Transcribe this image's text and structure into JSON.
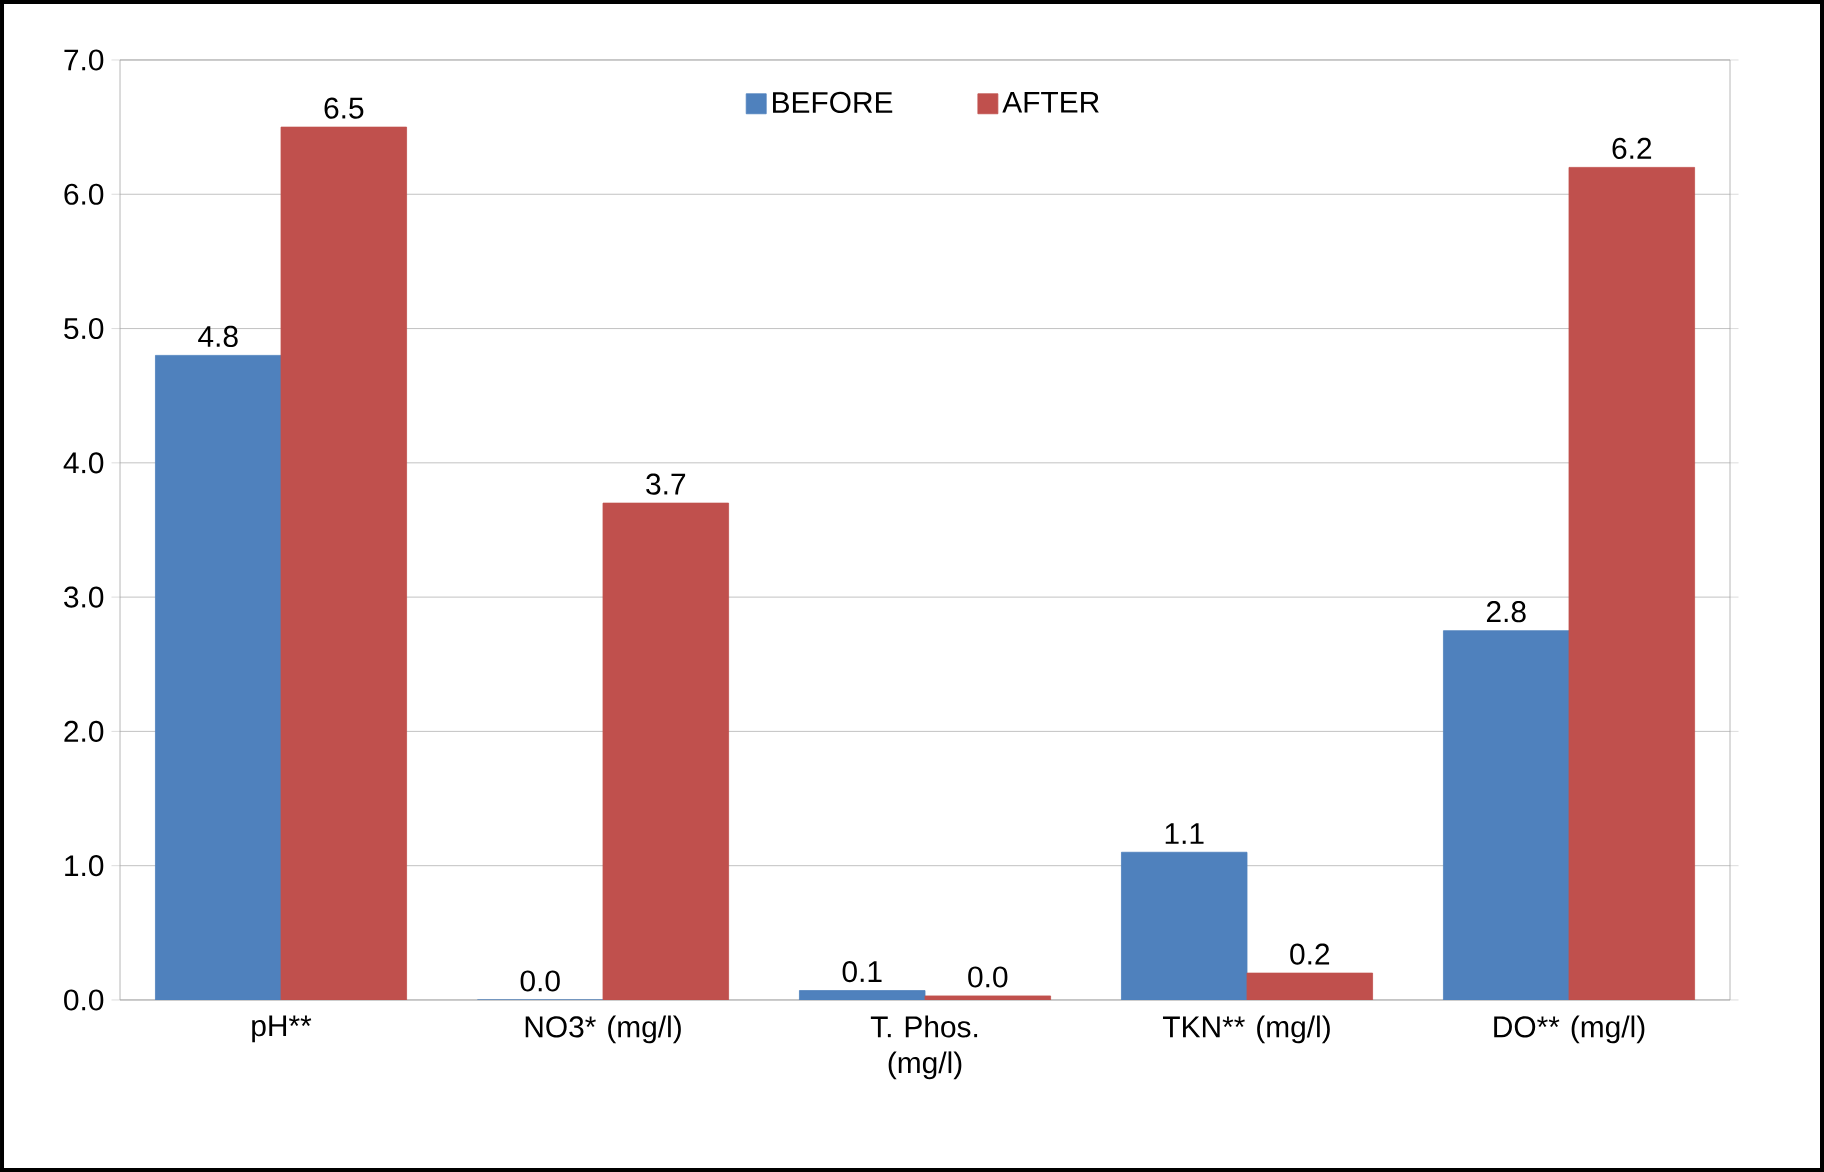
{
  "chart_data": {
    "type": "bar",
    "categories": [
      "pH**",
      "NO3* (mg/l)",
      "T. Phos. (mg/l)",
      "TKN** (mg/l)",
      "DO** (mg/l)"
    ],
    "series": [
      {
        "name": "BEFORE",
        "color": "#4f81bd",
        "values": [
          4.8,
          0.0,
          0.07,
          1.1,
          2.75
        ],
        "value_labels": [
          "4.8",
          "0.0",
          "0.1",
          "1.1",
          "2.8"
        ]
      },
      {
        "name": "AFTER",
        "color": "#c0504d",
        "values": [
          6.5,
          3.7,
          0.03,
          0.2,
          6.2
        ],
        "value_labels": [
          "6.5",
          "3.7",
          "0.0",
          "0.2",
          "6.2"
        ]
      }
    ],
    "ylim": [
      0,
      7
    ],
    "yticks": [
      {
        "value": 0,
        "label": "0.0"
      },
      {
        "value": 1,
        "label": "1.0"
      },
      {
        "value": 2,
        "label": "2.0"
      },
      {
        "value": 3,
        "label": "3.0"
      },
      {
        "value": 4,
        "label": "4.0"
      },
      {
        "value": 5,
        "label": "5.0"
      },
      {
        "value": 6,
        "label": "6.0"
      },
      {
        "value": 7,
        "label": "7.0"
      }
    ],
    "grid": "y",
    "legend": "top"
  }
}
